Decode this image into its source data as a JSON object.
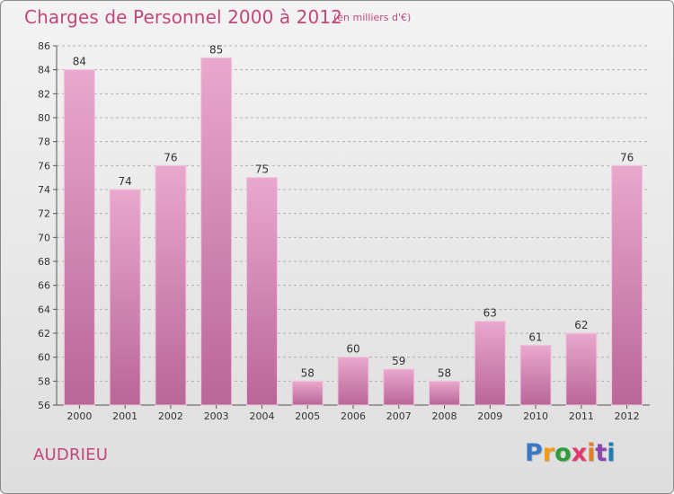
{
  "header": {
    "title": "Charges de Personnel 2000 à 2012",
    "subtitle": "(en milliers d'€)"
  },
  "footer": {
    "city": "AUDRIEU",
    "logo_text": "Proxiti"
  },
  "colors": {
    "accent": "#c2477a",
    "bar_top": "#e9a8cd",
    "bar_bottom": "#b96698",
    "axis": "#555555",
    "grid": "#b0b0b0",
    "logo": [
      "#3a78c4",
      "#f39c12",
      "#2e9a3a",
      "#e23a6e",
      "#e67e22",
      "#8e44ad",
      "#1e7bb8"
    ]
  },
  "chart_data": {
    "type": "bar",
    "title": "Charges de Personnel 2000 à 2012",
    "subtitle": "(en milliers d'€)",
    "categories": [
      "2000",
      "2001",
      "2002",
      "2003",
      "2004",
      "2005",
      "2006",
      "2007",
      "2008",
      "2009",
      "2010",
      "2011",
      "2012"
    ],
    "values": [
      84,
      74,
      76,
      85,
      75,
      58,
      60,
      59,
      58,
      63,
      61,
      62,
      76
    ],
    "ylim": [
      56,
      86
    ],
    "yticks": [
      56,
      58,
      60,
      62,
      64,
      66,
      68,
      70,
      72,
      74,
      76,
      78,
      80,
      82,
      84,
      86
    ],
    "xlabel": "",
    "ylabel": "",
    "grid": true
  }
}
